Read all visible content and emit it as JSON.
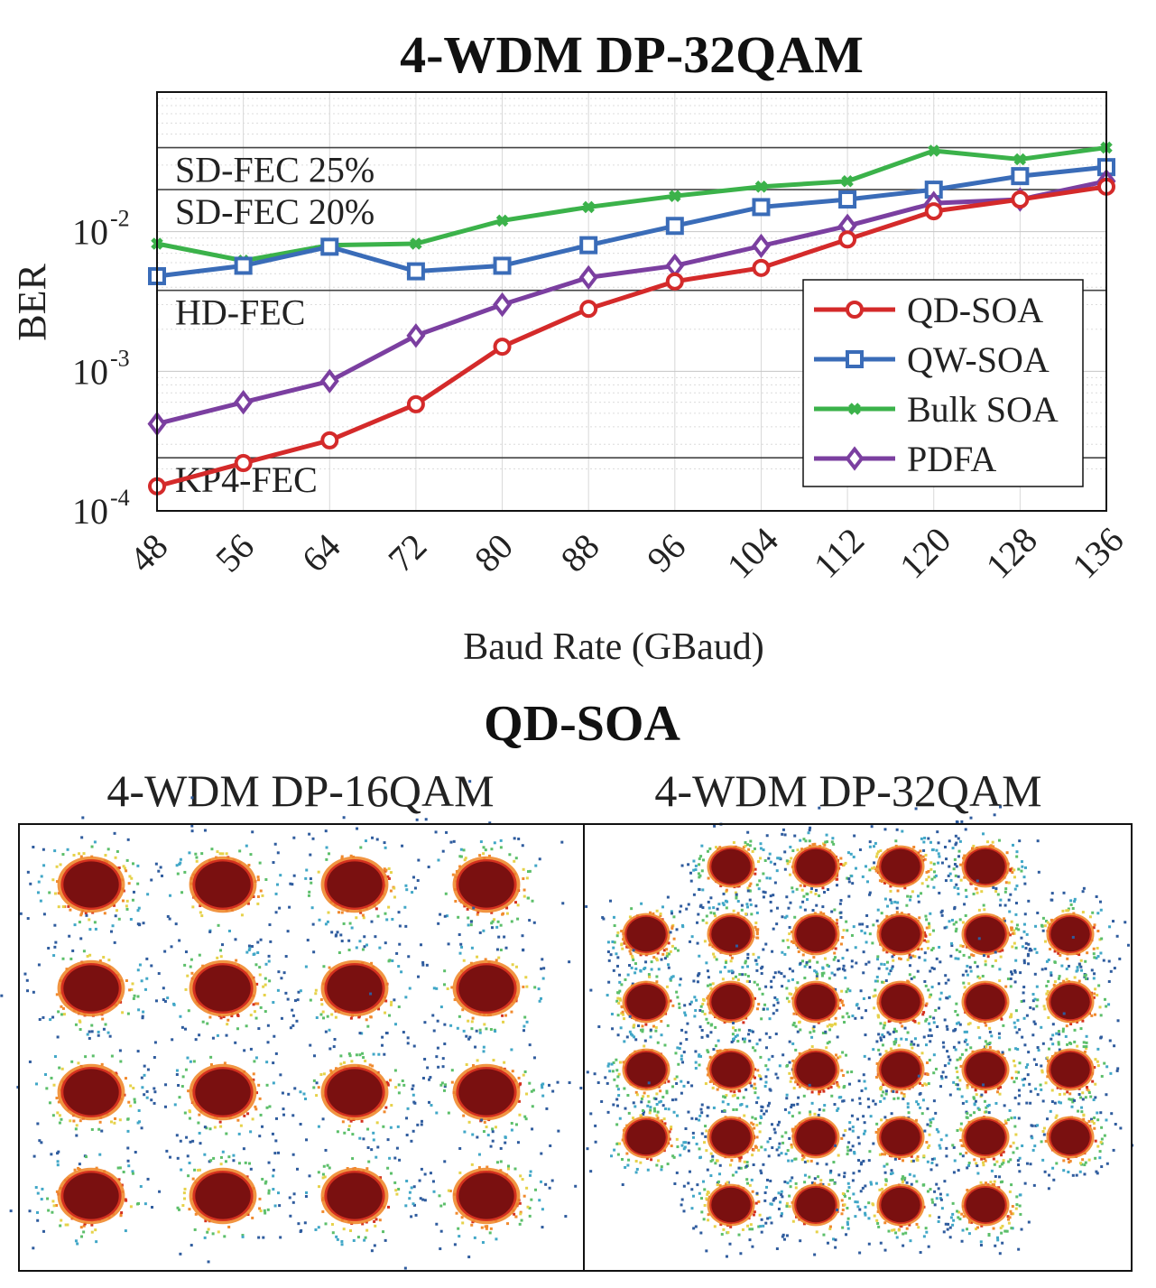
{
  "chart_data": [
    {
      "type": "line",
      "title": "4-WDM DP-32QAM",
      "xlabel": "Baud Rate (GBaud)",
      "ylabel": "BER",
      "y_scale": "log",
      "ylim": [
        0.0001,
        0.1
      ],
      "grid": true,
      "legend_position": "bottom-right",
      "x": [
        48,
        56,
        64,
        72,
        80,
        88,
        96,
        104,
        112,
        120,
        128,
        136
      ],
      "x_tick_labels": [
        "48",
        "56",
        "64",
        "72",
        "80",
        "88",
        "96",
        "104",
        "112",
        "120",
        "128",
        "136"
      ],
      "y_ticks": [
        {
          "value": 0.0001,
          "base": "10",
          "exp": "-4"
        },
        {
          "value": 0.001,
          "base": "10",
          "exp": "-3"
        },
        {
          "value": 0.01,
          "base": "10",
          "exp": "-2"
        }
      ],
      "thresholds": [
        {
          "label": "SD-FEC 25%",
          "value": 0.04
        },
        {
          "label": "SD-FEC 20%",
          "value": 0.02
        },
        {
          "label": "HD-FEC",
          "value": 0.0038
        },
        {
          "label": "KP4-FEC",
          "value": 0.00024
        }
      ],
      "series": [
        {
          "name": "QD-SOA",
          "color": "#d42a2a",
          "marker": "circle",
          "values": [
            0.00015,
            0.00022,
            0.00032,
            0.00058,
            0.0015,
            0.0028,
            0.0044,
            0.0055,
            0.0088,
            0.014,
            0.017,
            0.021
          ]
        },
        {
          "name": "QW-SOA",
          "color": "#3a6cb8",
          "marker": "square",
          "values": [
            0.0048,
            0.0057,
            0.0078,
            0.0052,
            0.0057,
            0.008,
            0.011,
            0.015,
            0.017,
            0.02,
            0.025,
            0.029
          ]
        },
        {
          "name": "Bulk SOA",
          "color": "#3bb24a",
          "marker": "x",
          "values": [
            0.0082,
            0.0062,
            0.008,
            0.0082,
            0.012,
            0.015,
            0.018,
            0.021,
            0.023,
            0.038,
            0.033,
            0.04
          ]
        },
        {
          "name": "PDFA",
          "color": "#7b3fa0",
          "marker": "diamond",
          "values": [
            0.00042,
            0.0006,
            0.00085,
            0.0018,
            0.003,
            0.0047,
            0.0057,
            0.0079,
            0.011,
            0.016,
            0.017,
            0.023
          ]
        }
      ]
    },
    {
      "type": "scatter",
      "title": "QD-SOA",
      "panels": [
        {
          "title": "4-WDM DP-16QAM",
          "grid_size": 4,
          "corners_removed": false
        },
        {
          "title": "4-WDM DP-32QAM",
          "grid_size": 6,
          "corners_removed": true
        }
      ],
      "colors": [
        "#2f5c9e",
        "#41a7c7",
        "#5cbf6a",
        "#e6d24a",
        "#f08a2e",
        "#d4311f",
        "#7a1010"
      ]
    }
  ]
}
